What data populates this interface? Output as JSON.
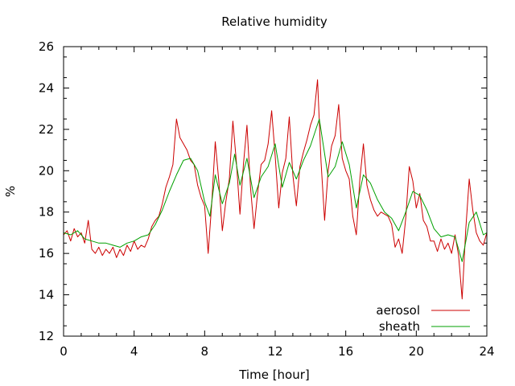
{
  "chart_data": {
    "type": "line",
    "title": "Relative humidity",
    "xlabel": "Time [hour]",
    "ylabel": "%",
    "xlim": [
      0,
      24
    ],
    "ylim": [
      12,
      26
    ],
    "x_ticks": [
      0,
      4,
      8,
      12,
      16,
      20,
      24
    ],
    "y_ticks": [
      12,
      14,
      16,
      18,
      20,
      22,
      24,
      26
    ],
    "grid": false,
    "legend_position": "bottom-right",
    "series": [
      {
        "name": "aerosol",
        "color": "#cc0000",
        "points": [
          [
            0.0,
            16.9
          ],
          [
            0.2,
            17.1
          ],
          [
            0.4,
            16.6
          ],
          [
            0.6,
            17.2
          ],
          [
            0.8,
            16.8
          ],
          [
            1.0,
            17.0
          ],
          [
            1.2,
            16.5
          ],
          [
            1.4,
            17.6
          ],
          [
            1.6,
            16.2
          ],
          [
            1.8,
            16.0
          ],
          [
            2.0,
            16.3
          ],
          [
            2.2,
            15.9
          ],
          [
            2.4,
            16.2
          ],
          [
            2.6,
            16.0
          ],
          [
            2.8,
            16.3
          ],
          [
            3.0,
            15.8
          ],
          [
            3.2,
            16.2
          ],
          [
            3.4,
            15.9
          ],
          [
            3.6,
            16.4
          ],
          [
            3.8,
            16.1
          ],
          [
            4.0,
            16.6
          ],
          [
            4.2,
            16.2
          ],
          [
            4.4,
            16.4
          ],
          [
            4.6,
            16.3
          ],
          [
            4.8,
            16.7
          ],
          [
            5.0,
            17.3
          ],
          [
            5.2,
            17.6
          ],
          [
            5.4,
            17.8
          ],
          [
            5.6,
            18.4
          ],
          [
            5.8,
            19.2
          ],
          [
            6.0,
            19.7
          ],
          [
            6.2,
            20.3
          ],
          [
            6.4,
            22.5
          ],
          [
            6.6,
            21.6
          ],
          [
            6.8,
            21.3
          ],
          [
            7.0,
            21.0
          ],
          [
            7.2,
            20.5
          ],
          [
            7.4,
            20.3
          ],
          [
            7.6,
            19.3
          ],
          [
            7.8,
            18.7
          ],
          [
            8.0,
            18.3
          ],
          [
            8.2,
            16.0
          ],
          [
            8.4,
            18.4
          ],
          [
            8.6,
            21.4
          ],
          [
            8.8,
            19.5
          ],
          [
            9.0,
            17.1
          ],
          [
            9.2,
            18.5
          ],
          [
            9.4,
            19.6
          ],
          [
            9.6,
            22.4
          ],
          [
            9.8,
            20.4
          ],
          [
            10.0,
            17.9
          ],
          [
            10.2,
            20.3
          ],
          [
            10.4,
            22.2
          ],
          [
            10.6,
            19.2
          ],
          [
            10.8,
            17.2
          ],
          [
            11.0,
            18.9
          ],
          [
            11.2,
            20.3
          ],
          [
            11.4,
            20.5
          ],
          [
            11.6,
            21.3
          ],
          [
            11.8,
            22.9
          ],
          [
            12.0,
            20.7
          ],
          [
            12.2,
            18.2
          ],
          [
            12.4,
            19.9
          ],
          [
            12.6,
            20.6
          ],
          [
            12.8,
            22.6
          ],
          [
            13.0,
            19.8
          ],
          [
            13.2,
            18.3
          ],
          [
            13.4,
            20.2
          ],
          [
            13.6,
            20.9
          ],
          [
            13.8,
            21.5
          ],
          [
            14.0,
            22.2
          ],
          [
            14.2,
            22.7
          ],
          [
            14.4,
            24.4
          ],
          [
            14.6,
            20.4
          ],
          [
            14.8,
            17.6
          ],
          [
            15.0,
            20.0
          ],
          [
            15.2,
            21.2
          ],
          [
            15.4,
            21.7
          ],
          [
            15.6,
            23.2
          ],
          [
            15.8,
            20.6
          ],
          [
            16.0,
            20.0
          ],
          [
            16.2,
            19.6
          ],
          [
            16.4,
            17.8
          ],
          [
            16.6,
            16.9
          ],
          [
            16.8,
            19.6
          ],
          [
            17.0,
            21.3
          ],
          [
            17.2,
            19.3
          ],
          [
            17.4,
            18.6
          ],
          [
            17.6,
            18.1
          ],
          [
            17.8,
            17.8
          ],
          [
            18.0,
            18.0
          ],
          [
            18.2,
            17.9
          ],
          [
            18.4,
            17.8
          ],
          [
            18.6,
            17.4
          ],
          [
            18.8,
            16.3
          ],
          [
            19.0,
            16.7
          ],
          [
            19.2,
            16.0
          ],
          [
            19.4,
            17.7
          ],
          [
            19.6,
            20.2
          ],
          [
            19.8,
            19.5
          ],
          [
            20.0,
            18.2
          ],
          [
            20.2,
            18.9
          ],
          [
            20.4,
            17.6
          ],
          [
            20.6,
            17.3
          ],
          [
            20.8,
            16.6
          ],
          [
            21.0,
            16.6
          ],
          [
            21.2,
            16.1
          ],
          [
            21.4,
            16.7
          ],
          [
            21.6,
            16.2
          ],
          [
            21.8,
            16.5
          ],
          [
            22.0,
            16.0
          ],
          [
            22.2,
            16.9
          ],
          [
            22.4,
            15.9
          ],
          [
            22.6,
            13.8
          ],
          [
            22.8,
            17.1
          ],
          [
            23.0,
            19.6
          ],
          [
            23.2,
            18.1
          ],
          [
            23.4,
            17.0
          ],
          [
            23.6,
            16.6
          ],
          [
            23.8,
            16.4
          ],
          [
            24.0,
            17.0
          ]
        ]
      },
      {
        "name": "sheath",
        "color": "#00a000",
        "points": [
          [
            0.0,
            17.0
          ],
          [
            0.4,
            16.9
          ],
          [
            0.8,
            17.1
          ],
          [
            1.2,
            16.7
          ],
          [
            1.6,
            16.6
          ],
          [
            2.0,
            16.5
          ],
          [
            2.4,
            16.5
          ],
          [
            2.8,
            16.4
          ],
          [
            3.2,
            16.3
          ],
          [
            3.6,
            16.5
          ],
          [
            4.0,
            16.6
          ],
          [
            4.4,
            16.8
          ],
          [
            4.8,
            16.9
          ],
          [
            5.2,
            17.4
          ],
          [
            5.6,
            18.1
          ],
          [
            6.0,
            19.0
          ],
          [
            6.4,
            19.8
          ],
          [
            6.8,
            20.5
          ],
          [
            7.2,
            20.6
          ],
          [
            7.6,
            20.0
          ],
          [
            8.0,
            18.5
          ],
          [
            8.3,
            17.8
          ],
          [
            8.6,
            19.8
          ],
          [
            9.0,
            18.4
          ],
          [
            9.4,
            19.4
          ],
          [
            9.7,
            20.8
          ],
          [
            10.0,
            19.3
          ],
          [
            10.4,
            20.6
          ],
          [
            10.8,
            18.7
          ],
          [
            11.2,
            19.7
          ],
          [
            11.6,
            20.2
          ],
          [
            12.0,
            21.3
          ],
          [
            12.4,
            19.2
          ],
          [
            12.8,
            20.4
          ],
          [
            13.2,
            19.6
          ],
          [
            13.6,
            20.5
          ],
          [
            14.0,
            21.2
          ],
          [
            14.5,
            22.5
          ],
          [
            15.0,
            19.7
          ],
          [
            15.4,
            20.2
          ],
          [
            15.8,
            21.4
          ],
          [
            16.2,
            20.3
          ],
          [
            16.6,
            18.2
          ],
          [
            17.0,
            19.8
          ],
          [
            17.4,
            19.4
          ],
          [
            17.8,
            18.6
          ],
          [
            18.2,
            18.0
          ],
          [
            18.6,
            17.7
          ],
          [
            19.0,
            17.1
          ],
          [
            19.4,
            18.0
          ],
          [
            19.8,
            19.0
          ],
          [
            20.2,
            18.8
          ],
          [
            20.6,
            18.1
          ],
          [
            21.0,
            17.2
          ],
          [
            21.4,
            16.8
          ],
          [
            21.8,
            16.9
          ],
          [
            22.2,
            16.8
          ],
          [
            22.6,
            15.6
          ],
          [
            23.0,
            17.5
          ],
          [
            23.4,
            18.0
          ],
          [
            23.8,
            16.9
          ],
          [
            24.0,
            17.0
          ]
        ]
      }
    ]
  }
}
